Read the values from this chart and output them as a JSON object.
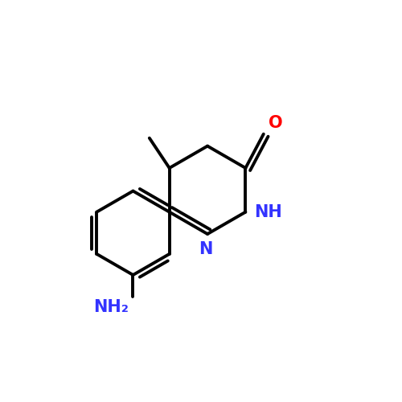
{
  "background_color": "#ffffff",
  "bond_color": "#000000",
  "bond_width": 2.8,
  "atom_colors": {
    "N": "#3333ff",
    "O": "#ff0000",
    "C": "#000000"
  },
  "figsize": [
    5.0,
    5.0
  ],
  "dpi": 100
}
